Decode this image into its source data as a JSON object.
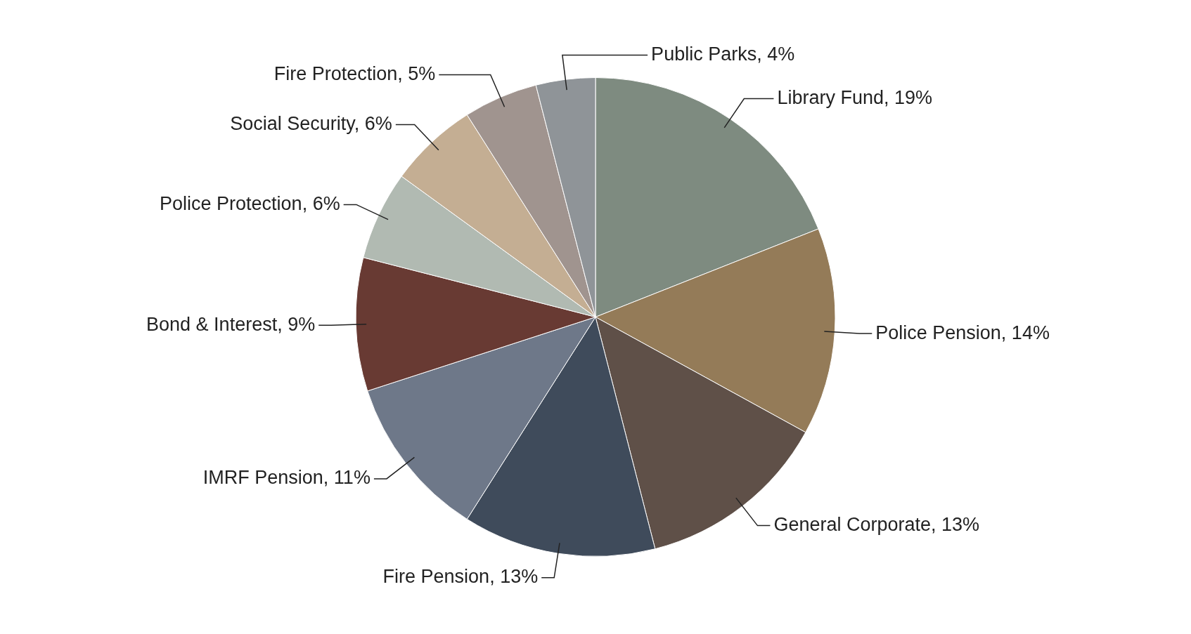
{
  "chart_data": {
    "type": "pie",
    "categories": [
      "Library Fund",
      "Police Pension",
      "General Corporate",
      "Fire Pension",
      "IMRF Pension",
      "Bond & Interest",
      "Police Protection",
      "Social Security",
      "Fire Protection",
      "Public Parks"
    ],
    "values": [
      19,
      14,
      13,
      13,
      11,
      9,
      6,
      6,
      5,
      4
    ],
    "value_labels": [
      "19%",
      "14%",
      "13%",
      "13%",
      "11%",
      "9%",
      "6%",
      "6%",
      "5%",
      "4%"
    ],
    "colors": [
      "#7e8b80",
      "#947b58",
      "#5f5048",
      "#3f4b5b",
      "#6e7889",
      "#683a33",
      "#b1bab2",
      "#c4ae93",
      "#a0948f",
      "#8f9498"
    ],
    "legend": false
  }
}
